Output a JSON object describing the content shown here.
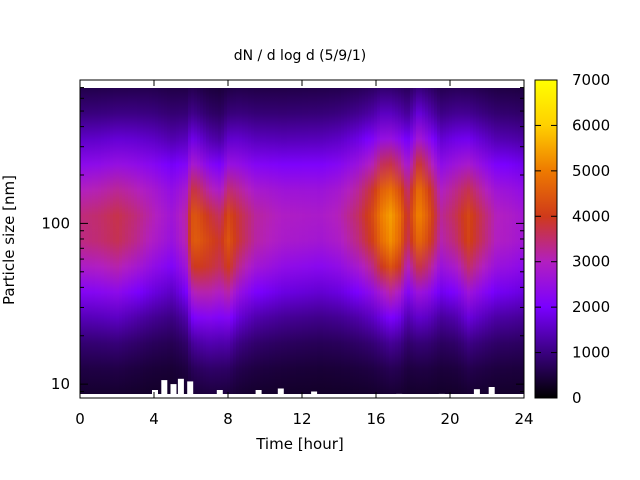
{
  "chart_data": {
    "type": "heatmap",
    "title": "dN / d log d (5/9/1)",
    "xlabel": "Time [hour]",
    "ylabel": "Particle size [nm]",
    "x_range": [
      0,
      24
    ],
    "y_range_nm": [
      8.2,
      780
    ],
    "y_scale": "log",
    "x_ticks": [
      "0",
      "4",
      "8",
      "12",
      "16",
      "20",
      "24"
    ],
    "x_tick_values": [
      0,
      4,
      8,
      12,
      16,
      20,
      24
    ],
    "y_ticks": [
      "10",
      "100"
    ],
    "y_tick_values": [
      10,
      100
    ],
    "colorbar": {
      "range": [
        0,
        7000
      ],
      "ticks": [
        "0",
        "1000",
        "2000",
        "3000",
        "4000",
        "5000",
        "6000",
        "7000"
      ],
      "tick_values": [
        0,
        1000,
        2000,
        3000,
        4000,
        5000,
        6000,
        7000
      ],
      "colormap": [
        "#000000",
        "#3a0080",
        "#7a00ff",
        "#b21fc0",
        "#cf3a1a",
        "#ee7a00",
        "#ffd000",
        "#ffff00"
      ]
    },
    "grid": false,
    "time_profile": {
      "hours": [
        0,
        1,
        2,
        3,
        4,
        5,
        5.8,
        6,
        6.3,
        7,
        7.6,
        8,
        8.6,
        9.5,
        11,
        13,
        14,
        15,
        15.8,
        16.3,
        16.8,
        17.3,
        17.7,
        18.3,
        18.8,
        19.5,
        20.3,
        21,
        21.6,
        22.5,
        23.2,
        24
      ],
      "peak_concentration": [
        3200,
        3300,
        3500,
        3200,
        2800,
        2400,
        3000,
        4200,
        4300,
        3900,
        3600,
        4200,
        3600,
        3000,
        2700,
        2600,
        2800,
        3300,
        4000,
        4800,
        5200,
        4600,
        3500,
        4900,
        4300,
        3000,
        3400,
        4000,
        3500,
        2800,
        2700,
        2500
      ],
      "mode_diameter_nm": [
        100,
        100,
        100,
        105,
        110,
        110,
        100,
        95,
        90,
        80,
        78,
        85,
        95,
        100,
        105,
        110,
        110,
        110,
        110,
        110,
        105,
        105,
        110,
        120,
        115,
        110,
        110,
        100,
        100,
        100,
        100,
        100
      ]
    },
    "low_size_gaps": {
      "hours": [
        4.0,
        4.5,
        5.0,
        5.4,
        5.9,
        7.5,
        9.6,
        10.8,
        12.6,
        17.2,
        19.5,
        21.4,
        22.2
      ],
      "cutoff_nm": [
        9.2,
        10.6,
        10.0,
        10.8,
        10.4,
        9.2,
        9.2,
        9.4,
        9.0,
        8.7,
        8.7,
        9.3,
        9.6
      ]
    }
  }
}
